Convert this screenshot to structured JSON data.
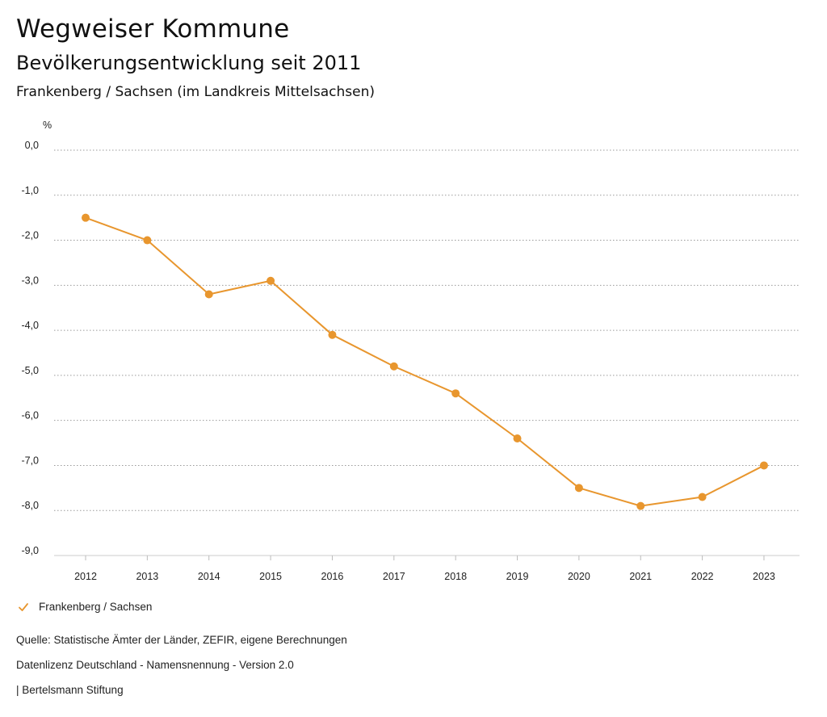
{
  "header": {
    "title": "Wegweiser Kommune",
    "subtitle": "Bevölkerungsentwicklung seit 2011",
    "region": "Frankenberg / Sachsen (im Landkreis Mittelsachsen)"
  },
  "chart_data": {
    "type": "line",
    "ylabel": "%",
    "ylim": [
      -9.0,
      0.0
    ],
    "y_ticks": [
      "0,0",
      "-1,0",
      "-2,0",
      "-3,0",
      "-4,0",
      "-5,0",
      "-6,0",
      "-7,0",
      "-8,0",
      "-9,0"
    ],
    "y_tick_values": [
      0,
      -1,
      -2,
      -3,
      -4,
      -5,
      -6,
      -7,
      -8,
      -9
    ],
    "categories": [
      "2012",
      "2013",
      "2014",
      "2015",
      "2016",
      "2017",
      "2018",
      "2019",
      "2020",
      "2021",
      "2022",
      "2023"
    ],
    "series": [
      {
        "name": "Frankenberg / Sachsen",
        "values": [
          -1.5,
          -2.0,
          -3.2,
          -2.9,
          -4.1,
          -4.8,
          -5.4,
          -6.4,
          -7.5,
          -7.9,
          -7.7,
          -7.0
        ],
        "color": "#E8962E"
      }
    ],
    "grid": "horizontal-dotted",
    "legend_position": "bottom-left"
  },
  "footer": {
    "source": "Quelle: Statistische Ämter der Länder, ZEFIR, eigene Berechnungen",
    "license": "Datenlizenz Deutschland - Namensnennung - Version 2.0",
    "publisher": "| Bertelsmann Stiftung"
  }
}
